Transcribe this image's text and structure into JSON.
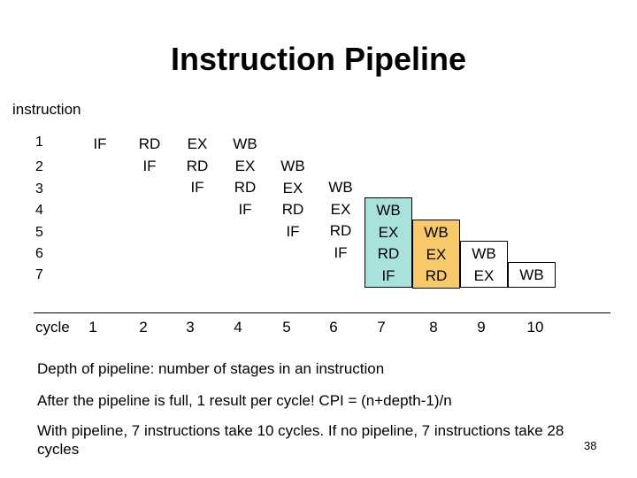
{
  "title": "Instruction Pipeline",
  "instruction_label": "instruction",
  "instructions": [
    "1",
    "2",
    "3",
    "4",
    "5",
    "6",
    "7"
  ],
  "cycle_label": "cycle",
  "cycles": [
    "1",
    "2",
    "3",
    "4",
    "5",
    "6",
    "7",
    "8",
    "9",
    "10"
  ],
  "columns": [
    {
      "cycle": "1",
      "stages": [
        "IF"
      ],
      "color": "#ffffff",
      "border": "none"
    },
    {
      "cycle": "2",
      "stages": [
        "RD",
        "IF"
      ],
      "color": "#ffffff",
      "border": "none"
    },
    {
      "cycle": "3",
      "stages": [
        "EX",
        "RD",
        "IF"
      ],
      "color": "#ffffff",
      "border": "none"
    },
    {
      "cycle": "4",
      "stages": [
        "WB",
        "EX",
        "RD",
        "IF"
      ],
      "color": "#ffffff",
      "border": "none"
    },
    {
      "cycle": "5",
      "stages": [
        "WB",
        "EX",
        "RD",
        "IF"
      ],
      "color": "#ffffff",
      "border": "none"
    },
    {
      "cycle": "6",
      "stages": [
        "WB",
        "EX",
        "RD",
        "IF"
      ],
      "color": "#ffffff",
      "border": "none"
    },
    {
      "cycle": "7",
      "stages": [
        "WB",
        "EX",
        "RD",
        "IF"
      ],
      "color": "#a9e1dd",
      "border": "solid"
    },
    {
      "cycle": "8",
      "stages": [
        "WB",
        "EX",
        "RD"
      ],
      "color": "#f8c96a",
      "border": "solid"
    },
    {
      "cycle": "9",
      "stages": [
        "WB",
        "EX"
      ],
      "color": "#ffffff",
      "border": "solid"
    },
    {
      "cycle": "10",
      "stages": [
        "WB"
      ],
      "color": "#ffffff",
      "border": "solid"
    }
  ],
  "notes": {
    "depth": "Depth of pipeline: number of stages in an instruction",
    "cpi": "After the pipeline is full, 1 result per cycle! CPI = (n+depth-1)/n",
    "comparison_line1": "With pipeline, 7 instructions take 10 cycles. If no pipeline, 7 instructions take 28",
    "comparison_line2": "cycles"
  },
  "page_number": "38"
}
